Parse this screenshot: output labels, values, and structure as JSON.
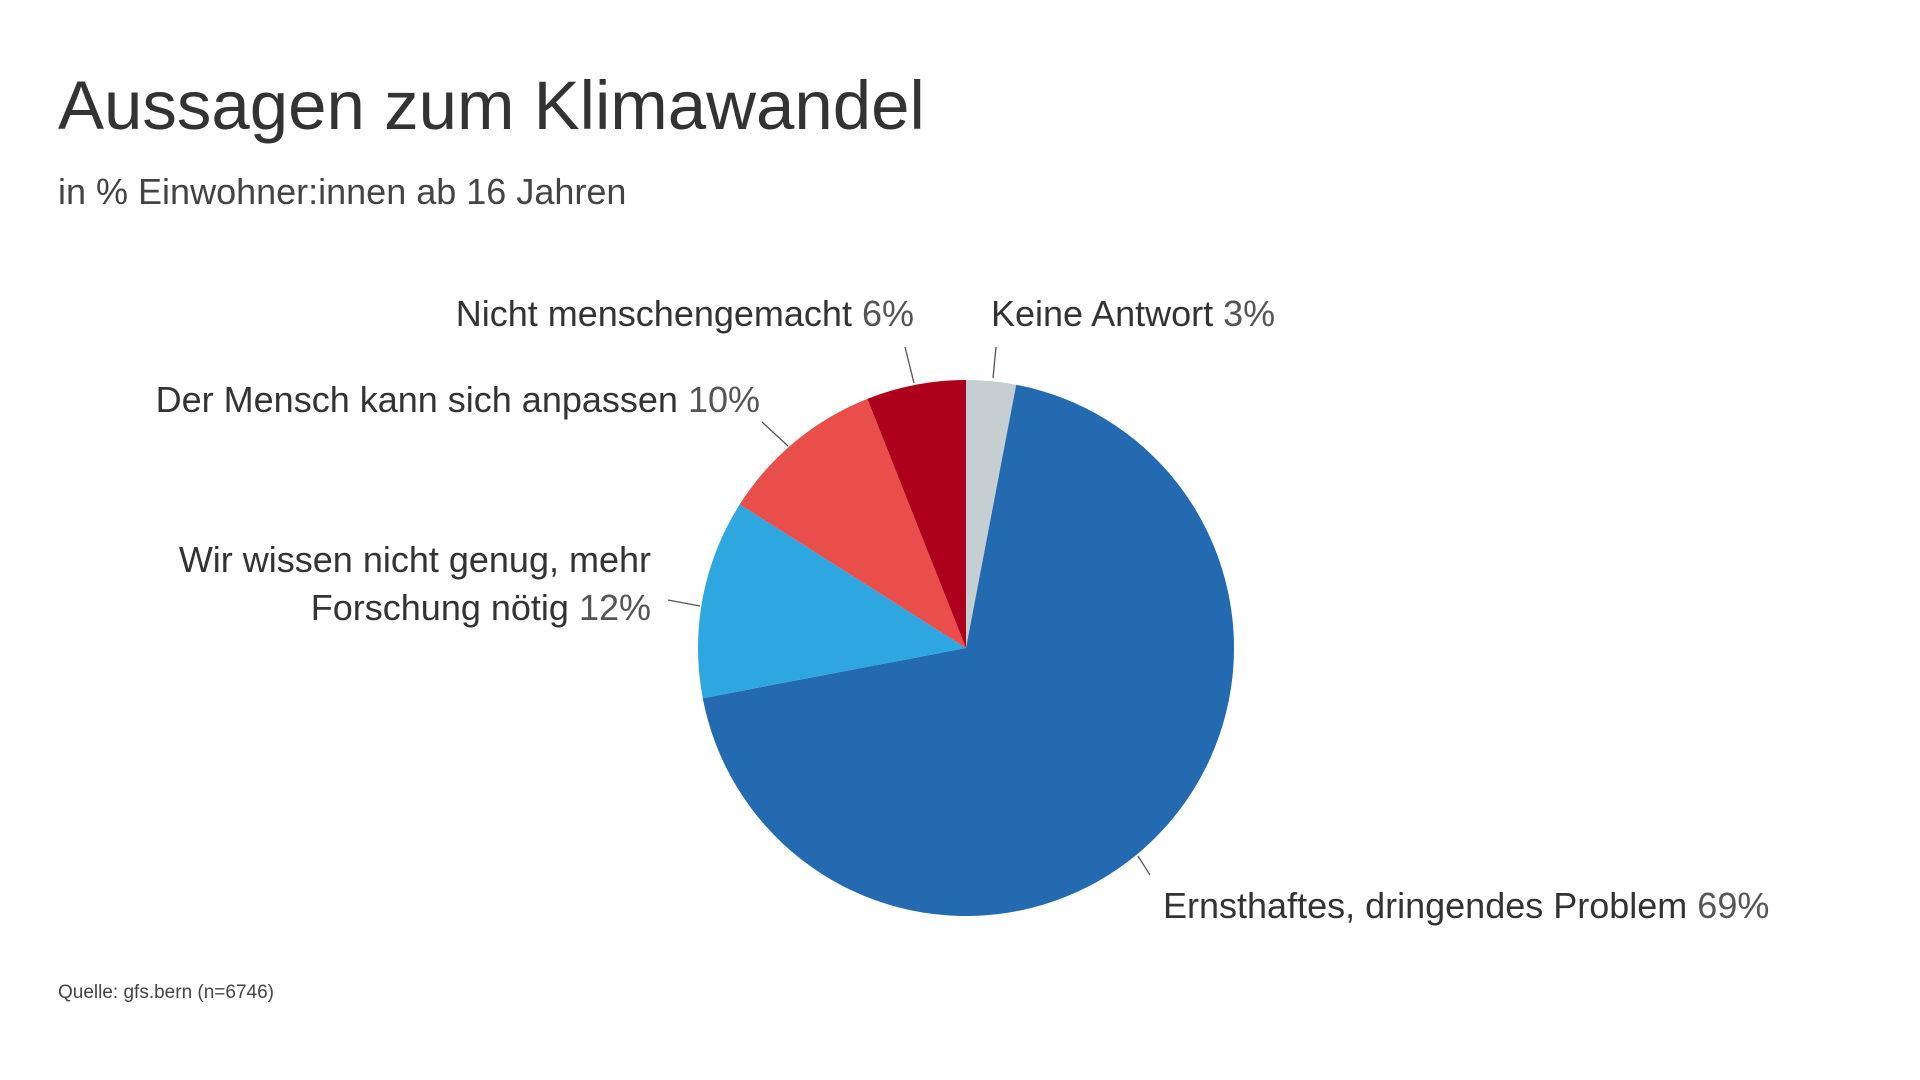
{
  "header": {
    "title": "Aussagen zum Klimawandel",
    "subtitle": "in % Einwohner:innen ab 16 Jahren"
  },
  "footer": {
    "source": "Quelle: gfs.bern (n=6746)"
  },
  "chart_data": {
    "type": "pie",
    "title": "Aussagen zum Klimawandel",
    "subtitle": "in % Einwohner:innen ab 16 Jahren",
    "unit": "%",
    "slices": [
      {
        "label": "Keine Antwort",
        "value": 3,
        "color": "#c5cfd1"
      },
      {
        "label": "Ernsthaftes, dringendes Problem",
        "value": 69,
        "color": "#236ab1"
      },
      {
        "label": "Wir wissen nicht genug, mehr Forschung nötig",
        "label_lines": [
          "Wir wissen nicht genug, mehr",
          "Forschung nötig"
        ],
        "value": 12,
        "color": "#2ea7e0"
      },
      {
        "label": "Der Mensch kann sich anpassen",
        "value": 10,
        "color": "#e94e4a"
      },
      {
        "label": "Nicht menschengemacht",
        "value": 6,
        "color": "#ad001d"
      }
    ],
    "value_labels": [
      "3%",
      "69%",
      "12%",
      "10%",
      "6%"
    ]
  }
}
